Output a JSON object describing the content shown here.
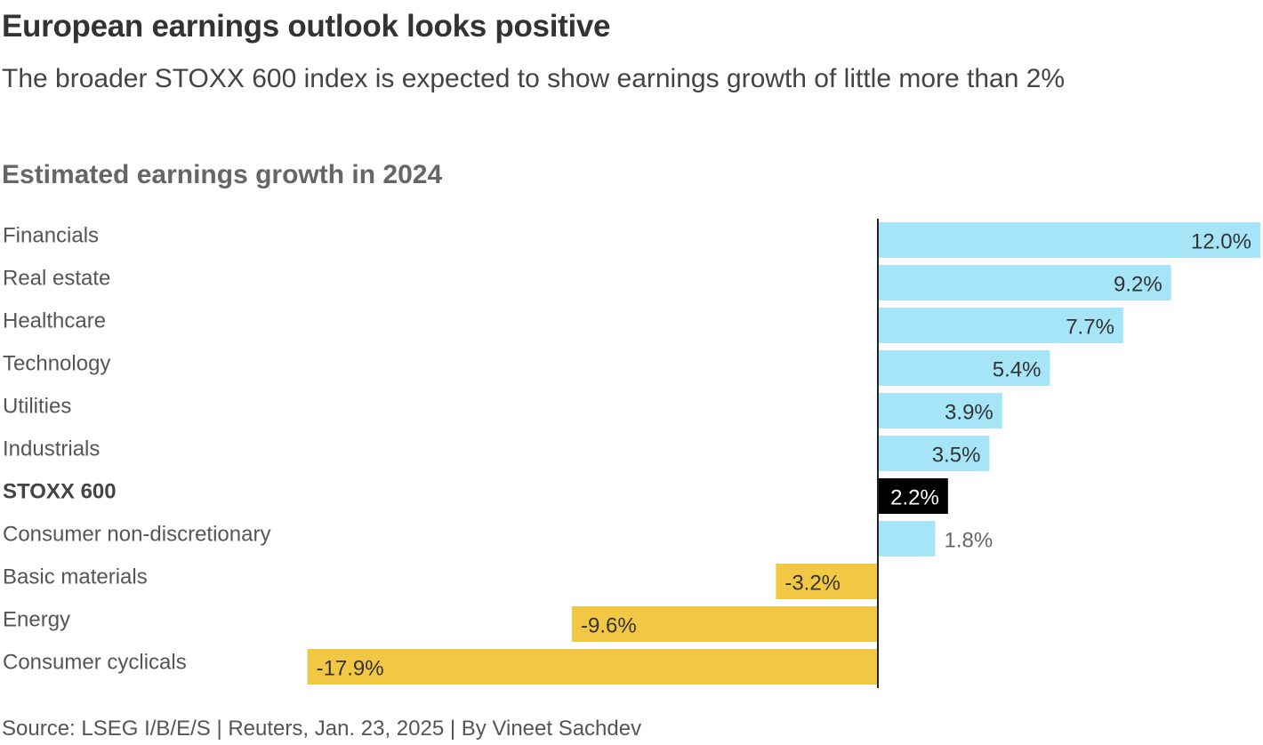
{
  "header": {
    "title": "European earnings outlook looks positive",
    "subtitle": "The broader STOXX 600 index is expected to show earnings growth of little more than 2%"
  },
  "footer": {
    "source": "Source: LSEG I/B/E/S | Reuters, Jan. 23, 2025 | By Vineet Sachdev"
  },
  "colors": {
    "positive": "#a6e4f8",
    "negative": "#f2c744",
    "highlight": "#000000",
    "axis": "#222222"
  },
  "chart_data": {
    "type": "bar",
    "orientation": "horizontal",
    "title": "Estimated earnings growth in 2024",
    "unit": "%",
    "xlim": [
      -17.9,
      12.0
    ],
    "categories": [
      "Financials",
      "Real estate",
      "Healthcare",
      "Technology",
      "Utilities",
      "Industrials",
      "STOXX 600",
      "Consumer non-discretionary",
      "Basic materials",
      "Energy",
      "Consumer cyclicals"
    ],
    "values": [
      12.0,
      9.2,
      7.7,
      5.4,
      3.9,
      3.5,
      2.2,
      1.8,
      -3.2,
      -9.6,
      -17.9
    ],
    "labels": [
      "12.0%",
      "9.2%",
      "7.7%",
      "5.4%",
      "3.9%",
      "3.5%",
      "2.2%",
      "1.8%",
      "-3.2%",
      "-9.6%",
      "-17.9%"
    ],
    "highlight_category": "STOXX 600"
  }
}
